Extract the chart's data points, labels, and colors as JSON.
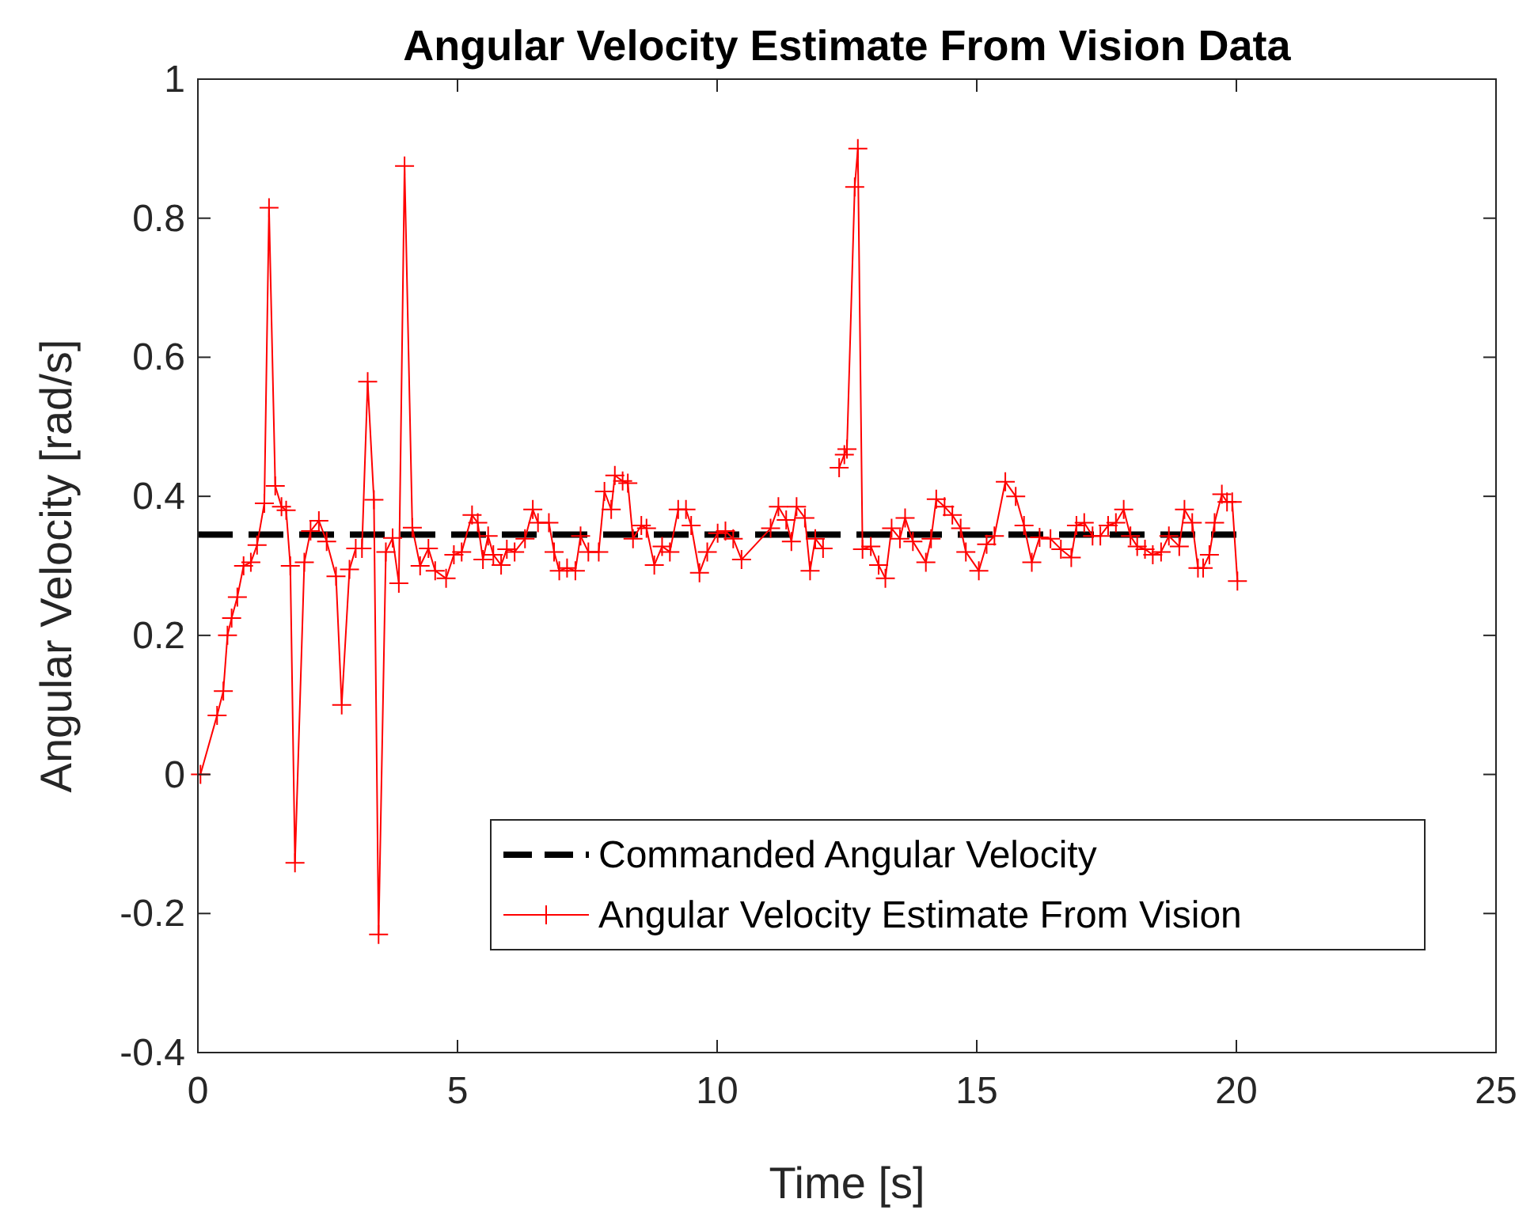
{
  "chart_data": {
    "type": "line",
    "title": "Angular Velocity Estimate From Vision Data",
    "xlabel": "Time [s]",
    "ylabel": "Angular Velocity [rad/s]",
    "xlim": [
      0,
      25
    ],
    "xticks": [
      0,
      5,
      10,
      15,
      20,
      25
    ],
    "ylim": [
      -0.4,
      1
    ],
    "yticks": [
      -0.4,
      -0.2,
      0,
      0.2,
      0.4,
      0.6,
      0.8,
      1
    ],
    "grid": false,
    "legend": "bottom right",
    "series": [
      {
        "name": "Commanded Angular Velocity",
        "color": "#000000",
        "line_style": "dashed",
        "marker": "none",
        "x": [
          0,
          20
        ],
        "values": [
          0.345,
          0.345
        ]
      },
      {
        "name": "Angular Velocity Estimate From Vision",
        "color": "#ff0000",
        "line_style": "solid",
        "marker": "cross",
        "x": [
          0.05,
          0.37,
          0.49,
          0.57,
          0.65,
          0.76,
          0.88,
          1.02,
          1.14,
          1.28,
          1.37,
          1.49,
          1.61,
          1.7,
          1.78,
          1.87,
          2.05,
          2.17,
          2.33,
          2.48,
          2.66,
          2.77,
          2.92,
          3.04,
          3.16,
          3.27,
          3.39,
          3.48,
          3.62,
          3.75,
          3.87,
          3.98,
          4.13,
          4.28,
          4.44,
          4.57,
          4.78,
          4.93,
          5.08,
          5.28,
          5.39,
          5.49,
          5.59,
          5.69,
          5.84,
          5.95,
          6.1,
          6.3,
          6.45,
          6.55,
          6.76,
          6.86,
          6.96,
          7.11,
          7.27,
          7.37,
          7.52,
          7.72,
          7.83,
          7.96,
          8.03,
          8.18,
          8.28,
          8.38,
          8.54,
          8.64,
          8.79,
          8.94,
          9.09,
          9.25,
          9.4,
          9.5,
          9.66,
          9.81,
          10.01,
          10.16,
          10.31,
          10.47,
          11.03,
          11.18,
          11.33,
          11.43,
          11.53,
          11.69,
          11.79,
          11.89,
          12.04,
          12.2,
          12.35,
          12.45,
          12.5,
          12.65,
          12.71,
          12.8,
          12.96,
          13.11,
          13.24,
          13.36,
          13.52,
          13.62,
          13.77,
          14.02,
          14.12,
          14.22,
          14.38,
          14.53,
          14.69,
          14.79,
          15.04,
          15.19,
          15.34,
          15.55,
          15.75,
          15.91,
          16.06,
          16.21,
          16.42,
          16.62,
          16.82,
          16.92,
          17.07,
          17.23,
          17.38,
          17.53,
          17.68,
          17.83,
          17.96,
          18.09,
          18.24,
          18.39,
          18.55,
          18.7,
          18.9,
          19.0,
          19.15,
          19.26,
          19.36,
          19.48,
          19.58,
          19.72,
          19.82,
          19.92,
          20.02
        ],
        "values": [
          0,
          0.085,
          0.12,
          0.2,
          0.225,
          0.255,
          0.3,
          0.305,
          0.33,
          0.39,
          0.815,
          0.415,
          0.385,
          0.38,
          0.3,
          -0.127,
          0.305,
          0.35,
          0.365,
          0.335,
          0.285,
          0.1,
          0.295,
          0.325,
          0.325,
          0.565,
          0.395,
          -0.23,
          0.32,
          0.34,
          0.275,
          0.875,
          0.355,
          0.3,
          0.325,
          0.293,
          0.282,
          0.316,
          0.32,
          0.373,
          0.362,
          0.309,
          0.343,
          0.316,
          0.301,
          0.324,
          0.32,
          0.339,
          0.381,
          0.362,
          0.362,
          0.32,
          0.293,
          0.297,
          0.293,
          0.343,
          0.32,
          0.32,
          0.407,
          0.381,
          0.43,
          0.422,
          0.419,
          0.339,
          0.358,
          0.354,
          0.301,
          0.328,
          0.32,
          0.381,
          0.381,
          0.358,
          0.29,
          0.32,
          0.347,
          0.35,
          0.339,
          0.309,
          0.354,
          0.385,
          0.366,
          0.335,
          0.385,
          0.369,
          0.293,
          0.339,
          0.325,
          null,
          0.441,
          0.46,
          0.468,
          0.845,
          0.9,
          0.324,
          0.328,
          0.301,
          0.282,
          0.354,
          0.339,
          0.369,
          0.335,
          0.305,
          0.339,
          0.396,
          0.385,
          0.373,
          0.354,
          0.32,
          0.293,
          0.331,
          0.343,
          0.421,
          0.4,
          0.358,
          0.305,
          0.341,
          0.339,
          0.324,
          0.312,
          0.358,
          0.362,
          0.343,
          0.343,
          0.358,
          0.362,
          0.381,
          0.343,
          0.328,
          0.324,
          0.316,
          0.32,
          0.343,
          0.328,
          0.381,
          0.362,
          0.297,
          0.297,
          0.316,
          0.362,
          0.403,
          0.392,
          0.392,
          0.278
        ]
      }
    ]
  }
}
